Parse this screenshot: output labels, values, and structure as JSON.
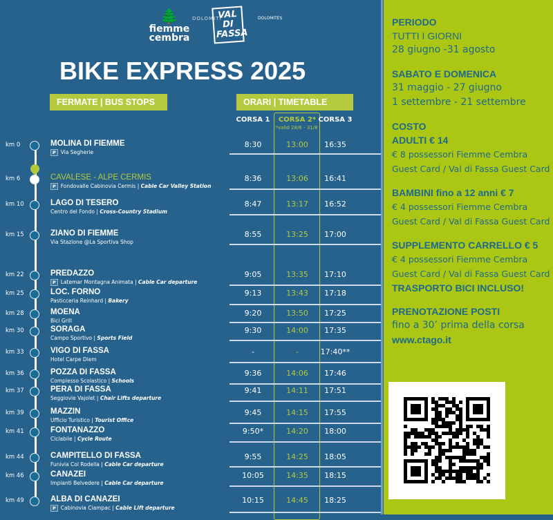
{
  "logos": {
    "left": "fiemme cembra DOLOMITI",
    "right": "VAL DI FASSA DOLOMITES"
  },
  "title": "BIKE EXPRESS 2025",
  "headers": {
    "stops": "FERMATE | BUS STOPS",
    "timetable": "ORARI | TIMETABLE"
  },
  "columns": [
    "CORSA 1",
    "CORSA 2*",
    "CORSA 3"
  ],
  "corsa2_note": "*valid 28/6 - 31/8",
  "stops": [
    {
      "km": "km 0",
      "name": "MOLINA DI FIEMME",
      "parking": true,
      "sub": "Via Segherie",
      "sub_en": "",
      "times": [
        "8:30",
        "13:00",
        "16:35"
      ]
    },
    {
      "km": "km 6",
      "name": "CAVALESE - ALPE CERMIS",
      "parking": true,
      "highlight": true,
      "sub": "Fondovalle Cabinovia Cermis",
      "sub_en": "Cable Car Valley Station",
      "times": [
        "8:36",
        "13:06",
        "16:41"
      ]
    },
    {
      "km": "km 10",
      "name": "LAGO DI TESERO",
      "sub": "Centro del Fondo",
      "sub_en": "Cross-Country Stadium",
      "times": [
        "8:47",
        "13:17",
        "16:52"
      ]
    },
    {
      "km": "km 15",
      "name": "ZIANO DI FIEMME",
      "sub": "Via Stazione @La Sportiva Shop",
      "sub_en": "",
      "times": [
        "8:55",
        "13:25",
        "17:00"
      ]
    },
    {
      "km": "km 22",
      "name": "PREDAZZO",
      "parking": true,
      "sub": "Latemar Montagna Animata",
      "sub_en": "Cable Car departure",
      "times": [
        "9:05",
        "13:35",
        "17:10"
      ]
    },
    {
      "km": "km 25",
      "name": "LOC. FORNO",
      "sub": "Pasticceria Reinhard",
      "sub_en": "Bakery",
      "times": [
        "9:13",
        "13:43",
        "17:18"
      ]
    },
    {
      "km": "km 28",
      "name": "MOENA",
      "sub": "Bici Grill",
      "sub_en": "",
      "times": [
        "9:20",
        "13:50",
        "17:25"
      ]
    },
    {
      "km": "km 30",
      "name": "SORAGA",
      "sub": "Campo Sportivo",
      "sub_en": "Sports Field",
      "times": [
        "9:30",
        "14:00",
        "17:35"
      ]
    },
    {
      "km": "km 33",
      "name": "VIGO DI FASSA",
      "sub": "Hotel Carpe Diem",
      "sub_en": "",
      "times": [
        "-",
        "-",
        "17:40**"
      ]
    },
    {
      "km": "km 36",
      "name": "POZZA DI FASSA",
      "sub": "Complesso Scolastico",
      "sub_en": "Schools",
      "times": [
        "9:36",
        "14:06",
        "17:46"
      ]
    },
    {
      "km": "km 37",
      "name": "PERA DI FASSA",
      "sub": "Seggiovie Vajolet",
      "sub_en": "Chair Lifts departure",
      "times": [
        "9:41",
        "14:11",
        "17:51"
      ]
    },
    {
      "km": "km 39",
      "name": "MAZZIN",
      "sub": "Ufficio Turistico",
      "sub_en": "Tourist Office",
      "times": [
        "9:45",
        "14:15",
        "17:55"
      ]
    },
    {
      "km": "km 41",
      "name": "FONTANAZZO",
      "sub": "Ciclabile",
      "sub_en": "Cycle Route",
      "times": [
        "9:50*",
        "14:20",
        "18:00"
      ]
    },
    {
      "km": "km 44",
      "name": "CAMPITELLO DI FASSA",
      "sub": "Funivia Col Rodella",
      "sub_en": "Cable Car departure",
      "times": [
        "9:55",
        "14:25",
        "18:05"
      ]
    },
    {
      "km": "km 46",
      "name": "CANAZEI",
      "sub": "Impianti Belvedere",
      "sub_en": "Cable Car departure",
      "times": [
        "10:05",
        "14:35",
        "18:15"
      ]
    },
    {
      "km": "km 49",
      "name": "ALBA DI CANAZEI",
      "parking": true,
      "sub": "Cabinovia Ciampac",
      "sub_en": "Cable Lift departure",
      "times": [
        "10:15",
        "14:45",
        "18:25"
      ]
    }
  ],
  "info": {
    "periodo": "PERIODO",
    "tutti": "TUTTI I GIORNI",
    "tutti_dates": "28 giugno -31  agosto",
    "weekend": "SABATO E DOMENICA",
    "weekend_1": "31 maggio - 27 giugno",
    "weekend_2": "1 settembre - 21 settembre",
    "costo": "COSTO",
    "adulti": "ADULTI € 14",
    "adulti_1": "€ 8 possessori Fiemme Cembra",
    "adulti_2": "Guest Card / Val di Fassa Guest Card",
    "bambini": "BAMBINI fino a 12 anni € 7",
    "bambini_1": "€ 4 possessori  Fiemme Cembra",
    "bambini_2": "Guest Card / Val di Fassa Guest Card",
    "carrello": "SUPPLEMENTO CARRELLO € 5",
    "carrello_1": "€ 4 possessori  Fiemme  Cembra",
    "carrello_2": "Guest Card / Val di Fassa Guest Card",
    "bici": "TRASPORTO BICI INCLUSO!",
    "prenotazione": "PRENOTAZIONE POSTI",
    "prenotazione_1": "fino a 30’ prima della corsa",
    "url": "www.ctago.it"
  },
  "colors": {
    "blue": "#26628c",
    "green": "#acc614",
    "accent": "#b5c93f"
  }
}
